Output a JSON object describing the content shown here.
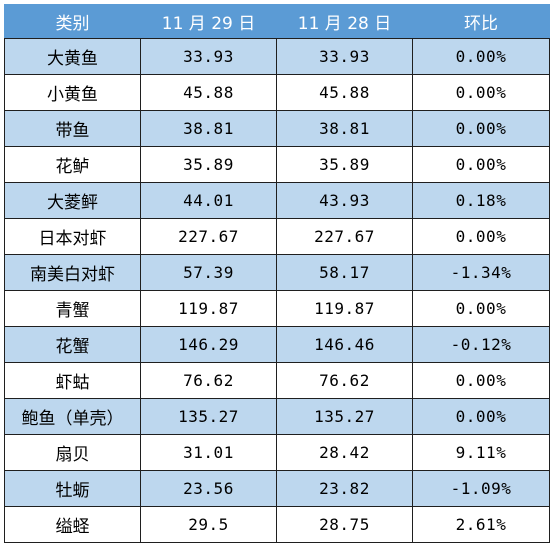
{
  "table": {
    "headers": [
      "类别",
      "11 月 29 日",
      "11 月 28 日",
      "环比"
    ],
    "rows": [
      {
        "name": "大黄鱼",
        "nov29": "33.93",
        "nov28": "33.93",
        "change": "0.00%"
      },
      {
        "name": "小黄鱼",
        "nov29": "45.88",
        "nov28": "45.88",
        "change": "0.00%"
      },
      {
        "name": "带鱼",
        "nov29": "38.81",
        "nov28": "38.81",
        "change": "0.00%"
      },
      {
        "name": "花鲈",
        "nov29": "35.89",
        "nov28": "35.89",
        "change": "0.00%"
      },
      {
        "name": "大菱鲆",
        "nov29": "44.01",
        "nov28": "43.93",
        "change": "0.18%"
      },
      {
        "name": "日本对虾",
        "nov29": "227.67",
        "nov28": "227.67",
        "change": "0.00%"
      },
      {
        "name": "南美白对虾",
        "nov29": "57.39",
        "nov28": "58.17",
        "change": "-1.34%"
      },
      {
        "name": "青蟹",
        "nov29": "119.87",
        "nov28": "119.87",
        "change": "0.00%"
      },
      {
        "name": "花蟹",
        "nov29": "146.29",
        "nov28": "146.46",
        "change": "-0.12%"
      },
      {
        "name": "虾蛄",
        "nov29": "76.62",
        "nov28": "76.62",
        "change": "0.00%"
      },
      {
        "name": "鲍鱼（单壳）",
        "nov29": "135.27",
        "nov28": "135.27",
        "change": "0.00%"
      },
      {
        "name": "扇贝",
        "nov29": "31.01",
        "nov28": "28.42",
        "change": "9.11%"
      },
      {
        "name": "牡蛎",
        "nov29": "23.56",
        "nov28": "23.82",
        "change": "-1.09%"
      },
      {
        "name": "缢蛏",
        "nov29": "29.5",
        "nov28": "28.75",
        "change": "2.61%"
      }
    ]
  },
  "colors": {
    "header_bg": "#5b9bd5",
    "header_text": "#ffffff",
    "shaded_row": "#bdd7ee",
    "plain_row": "#ffffff",
    "border": "#1f1f1f"
  }
}
